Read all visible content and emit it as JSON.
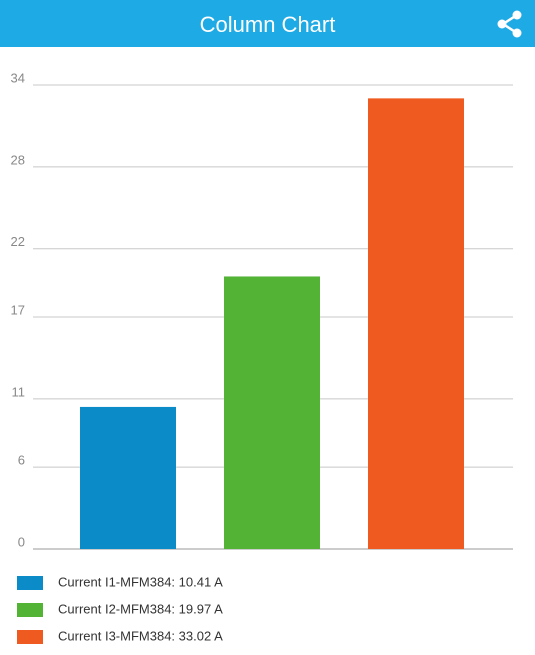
{
  "header": {
    "title": "Column Chart"
  },
  "chart_data": {
    "type": "bar",
    "categories": [
      "Current I1-MFM384",
      "Current I2-MFM384",
      "Current I3-MFM384"
    ],
    "values": [
      10.41,
      19.97,
      33.02
    ],
    "colors": [
      "#0b8bc8",
      "#52b335",
      "#ee5a1f"
    ],
    "legend_labels": [
      "Current I1-MFM384: 10.41 A",
      "Current I2-MFM384: 19.97 A",
      "Current I3-MFM384: 33.02 A"
    ],
    "ylim": [
      0,
      34
    ],
    "yticks": [
      0,
      6,
      11,
      17,
      22,
      28,
      34
    ],
    "grid": true
  }
}
